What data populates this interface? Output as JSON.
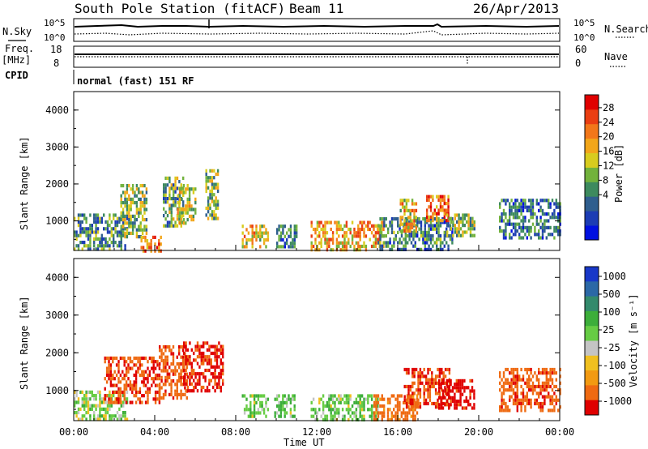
{
  "header": {
    "station_title": "South Pole Station (fitACF)",
    "beam": "Beam 11",
    "date": "26/Apr/2013"
  },
  "param_panels": {
    "nsky_label": "N.Sky",
    "nsky_ticks": [
      "10^5",
      "10^0"
    ],
    "nsearch_label": "N.Search",
    "freq_label_1": "Freq.",
    "freq_label_2": "[MHz]",
    "freq_ticks": [
      "18",
      "8"
    ],
    "nave_ticks": [
      "60",
      "0"
    ],
    "nave_label": "Nave",
    "cpid_label": "CPID",
    "cpid_value": "normal (fast) 151 RF"
  },
  "axes": {
    "ylabel": "Slant Range [km]",
    "yticks": [
      "4000",
      "3000",
      "2000",
      "1000"
    ],
    "xticks": [
      "00:00",
      "04:00",
      "08:00",
      "12:00",
      "16:00",
      "20:00",
      "00:00"
    ],
    "xlabel": "Time UT"
  },
  "colorbars": {
    "power": {
      "label": "Power [dB]",
      "ticks": [
        "28",
        "24",
        "20",
        "16",
        "12",
        "8",
        "4"
      ],
      "colors": [
        "#0010e0",
        "#1c3cb4",
        "#2f5e8e",
        "#3d8a5e",
        "#72b23c",
        "#d8cc1e",
        "#f2a61a",
        "#f2771a",
        "#ea3e12",
        "#e00000"
      ]
    },
    "velocity": {
      "label": "Velocity [m s⁻¹]",
      "ticks": [
        "1000",
        "500",
        "100",
        "25",
        "-25",
        "-100",
        "-500",
        "-1000"
      ],
      "colors": [
        "#1838c8",
        "#2b68a6",
        "#338a6c",
        "#3cae3a",
        "#66cc44",
        "#c4c4c4",
        "#f0c020",
        "#f29a12",
        "#ef6a12",
        "#e00000"
      ]
    }
  },
  "chart_data": [
    {
      "type": "heatmap",
      "title": "Power",
      "xlabel": "Time UT",
      "ylabel": "Slant Range [km]",
      "xlim": [
        0,
        24
      ],
      "ylim": [
        200,
        4500
      ],
      "colorbar_label": "Power [dB]",
      "zlim": [
        0,
        30
      ],
      "regions": [
        {
          "t0": 0.0,
          "t1": 2.6,
          "r0": 200,
          "r1": 1200,
          "v": 10
        },
        {
          "t0": 2.3,
          "t1": 3.6,
          "r0": 600,
          "r1": 2000,
          "v": 14
        },
        {
          "t0": 3.3,
          "t1": 4.3,
          "r0": 200,
          "r1": 600,
          "v": 22
        },
        {
          "t0": 4.4,
          "t1": 5.4,
          "r0": 900,
          "r1": 2200,
          "v": 12
        },
        {
          "t0": 5.1,
          "t1": 6.0,
          "r0": 900,
          "r1": 2000,
          "v": 16
        },
        {
          "t0": 6.5,
          "t1": 7.1,
          "r0": 1100,
          "r1": 2400,
          "v": 14
        },
        {
          "t0": 8.3,
          "t1": 9.6,
          "r0": 300,
          "r1": 900,
          "v": 18
        },
        {
          "t0": 10.0,
          "t1": 11.0,
          "r0": 300,
          "r1": 900,
          "v": 8
        },
        {
          "t0": 11.7,
          "t1": 15.3,
          "r0": 200,
          "r1": 1000,
          "v": 20
        },
        {
          "t0": 15.0,
          "t1": 18.7,
          "r0": 200,
          "r1": 1100,
          "v": 9
        },
        {
          "t0": 16.1,
          "t1": 16.9,
          "r0": 700,
          "r1": 1600,
          "v": 18
        },
        {
          "t0": 17.4,
          "t1": 18.5,
          "r0": 1000,
          "r1": 1700,
          "v": 24
        },
        {
          "t0": 18.4,
          "t1": 19.8,
          "r0": 600,
          "r1": 1200,
          "v": 14
        },
        {
          "t0": 21.0,
          "t1": 24.0,
          "r0": 500,
          "r1": 1600,
          "v": 8
        }
      ]
    },
    {
      "type": "heatmap",
      "title": "Velocity",
      "xlabel": "Time UT",
      "ylabel": "Slant Range [km]",
      "xlim": [
        0,
        24
      ],
      "ylim": [
        200,
        4500
      ],
      "colorbar_label": "Velocity [m s⁻¹]",
      "zlim": [
        -1000,
        1000
      ],
      "regions": [
        {
          "t0": 0.0,
          "t1": 2.6,
          "r0": 200,
          "r1": 1000,
          "v": 60
        },
        {
          "t0": 1.5,
          "t1": 4.2,
          "r0": 700,
          "r1": 1900,
          "v": -500
        },
        {
          "t0": 4.2,
          "t1": 5.6,
          "r0": 800,
          "r1": 2200,
          "v": -400
        },
        {
          "t0": 5.4,
          "t1": 7.4,
          "r0": 1000,
          "r1": 2300,
          "v": -600
        },
        {
          "t0": 8.3,
          "t1": 9.6,
          "r0": 300,
          "r1": 900,
          "v": 80
        },
        {
          "t0": 9.9,
          "t1": 10.9,
          "r0": 300,
          "r1": 900,
          "v": 100
        },
        {
          "t0": 11.7,
          "t1": 15.0,
          "r0": 200,
          "r1": 900,
          "v": 80
        },
        {
          "t0": 14.8,
          "t1": 17.0,
          "r0": 200,
          "r1": 900,
          "v": -150
        },
        {
          "t0": 16.3,
          "t1": 18.6,
          "r0": 600,
          "r1": 1600,
          "v": -500
        },
        {
          "t0": 18.0,
          "t1": 19.8,
          "r0": 500,
          "r1": 1300,
          "v": -800
        },
        {
          "t0": 21.0,
          "t1": 24.0,
          "r0": 500,
          "r1": 1600,
          "v": -400
        }
      ]
    }
  ]
}
